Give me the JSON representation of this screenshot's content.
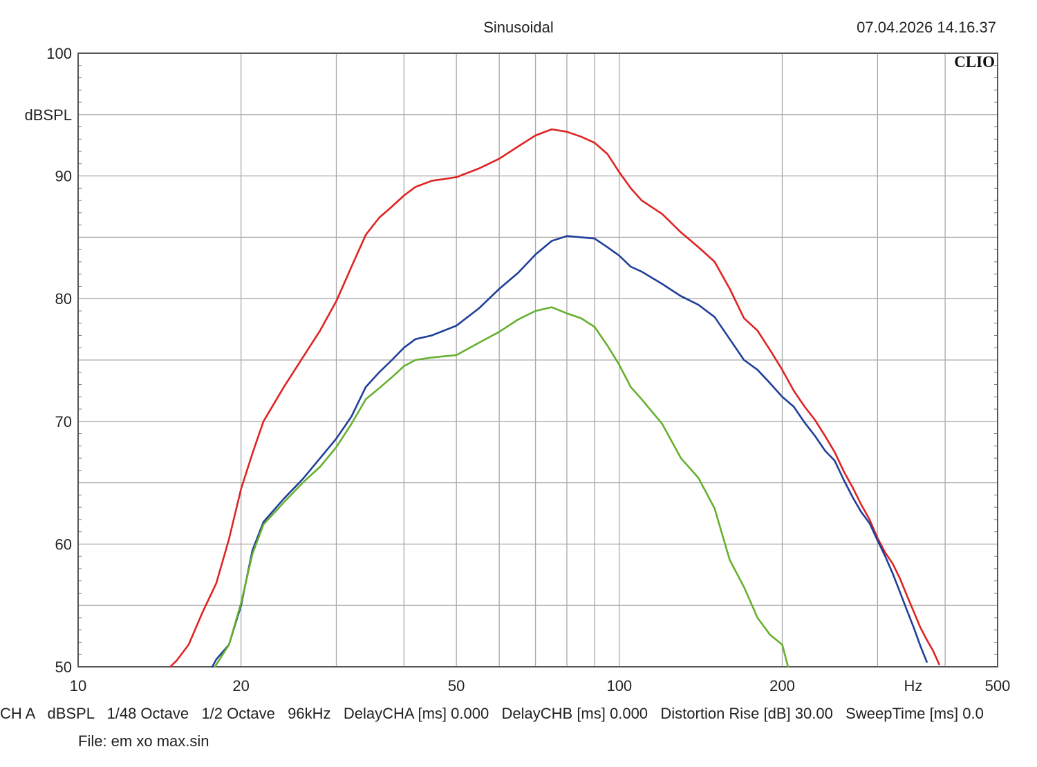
{
  "header": {
    "title": "Sinusoidal",
    "datetime": "07.04.2026 14.16.37",
    "brand": "CLIO"
  },
  "footer": {
    "settings_line": "CH A   dBSPL   1/48 Octave   1/2 Octave   96kHz   DelayCHA [ms] 0.000   DelayCHB [ms] 0.000   Distortion Rise [dB] 30.00   SweepTime [ms] 0.0",
    "file_line": "File: em xo max.sin"
  },
  "chart_data": {
    "type": "line",
    "title": "Sinusoidal",
    "xlabel": "Hz",
    "ylabel": "dBSPL",
    "x_scale": "log",
    "xlim": [
      10,
      500
    ],
    "ylim": [
      50,
      100
    ],
    "x_ticks": [
      10,
      20,
      50,
      100,
      200,
      500
    ],
    "y_ticks": [
      50,
      60,
      70,
      80,
      90,
      100
    ],
    "grid": true,
    "colors": {
      "grid": "#a9a9a9",
      "axis": "#555555"
    },
    "series": [
      {
        "color": "#e02222",
        "x": [
          14.8,
          15.2,
          16,
          17,
          18,
          19,
          20,
          21,
          22,
          24,
          26,
          28,
          30,
          32,
          34,
          36,
          38,
          40,
          42,
          45,
          50,
          55,
          60,
          65,
          70,
          75,
          80,
          85,
          90,
          95,
          100,
          105,
          110,
          120,
          130,
          140,
          150,
          160,
          170,
          180,
          190,
          200,
          210,
          220,
          230,
          240,
          250,
          260,
          270,
          280,
          290,
          300,
          310,
          320,
          330,
          340,
          350,
          360,
          370,
          380,
          390
        ],
        "y": [
          50.0,
          50.5,
          51.8,
          54.5,
          56.8,
          60.4,
          64.5,
          67.4,
          70.0,
          72.8,
          75.2,
          77.4,
          79.8,
          82.6,
          85.2,
          86.6,
          87.5,
          88.4,
          89.1,
          89.6,
          89.9,
          90.6,
          91.4,
          92.4,
          93.3,
          93.8,
          93.6,
          93.2,
          92.7,
          91.8,
          90.3,
          89.0,
          88.0,
          86.9,
          85.4,
          84.2,
          83.0,
          80.8,
          78.4,
          77.4,
          75.8,
          74.2,
          72.5,
          71.2,
          70.1,
          68.8,
          67.5,
          65.9,
          64.6,
          63.2,
          62.0,
          60.5,
          59.3,
          58.4,
          57.2,
          55.8,
          54.5,
          53.2,
          52.2,
          51.3,
          50.2
        ]
      },
      {
        "color": "#1f3f99",
        "x": [
          17.7,
          18,
          19,
          20,
          21,
          22,
          24,
          26,
          28,
          30,
          32,
          34,
          36,
          38,
          40,
          42,
          45,
          50,
          55,
          60,
          65,
          70,
          75,
          80,
          85,
          90,
          95,
          100,
          105,
          110,
          120,
          130,
          140,
          150,
          160,
          170,
          180,
          190,
          200,
          210,
          220,
          230,
          240,
          250,
          260,
          270,
          280,
          290,
          300,
          310,
          320,
          330,
          340,
          350,
          360,
          370
        ],
        "y": [
          50.0,
          50.6,
          51.8,
          55.0,
          59.5,
          61.8,
          63.7,
          65.3,
          67.0,
          68.6,
          70.4,
          72.8,
          74.0,
          75.0,
          76.0,
          76.7,
          77.0,
          77.8,
          79.2,
          80.8,
          82.1,
          83.6,
          84.7,
          85.1,
          85.0,
          84.9,
          84.2,
          83.5,
          82.6,
          82.2,
          81.2,
          80.2,
          79.5,
          78.5,
          76.7,
          75.0,
          74.2,
          73.1,
          72.0,
          71.2,
          69.9,
          68.8,
          67.6,
          66.8,
          65.2,
          63.8,
          62.6,
          61.7,
          60.3,
          59.0,
          57.6,
          56.1,
          54.6,
          53.2,
          51.7,
          50.4
        ]
      },
      {
        "color": "#66b02e",
        "x": [
          17.9,
          18.5,
          19,
          20,
          21,
          22,
          24,
          26,
          28,
          30,
          32,
          34,
          36,
          38,
          40,
          42,
          45,
          50,
          55,
          60,
          65,
          70,
          75,
          80,
          85,
          90,
          95,
          100,
          105,
          110,
          120,
          130,
          140,
          150,
          160,
          170,
          180,
          190,
          200,
          205
        ],
        "y": [
          50.0,
          51.0,
          51.8,
          55.2,
          59.2,
          61.6,
          63.4,
          65.0,
          66.3,
          67.9,
          69.8,
          71.8,
          72.7,
          73.6,
          74.5,
          75.0,
          75.2,
          75.4,
          76.4,
          77.3,
          78.3,
          79.0,
          79.3,
          78.8,
          78.4,
          77.7,
          76.2,
          74.6,
          72.8,
          71.8,
          69.8,
          67.0,
          65.4,
          62.9,
          58.7,
          56.5,
          54.0,
          52.6,
          51.8,
          50.0
        ]
      }
    ]
  }
}
